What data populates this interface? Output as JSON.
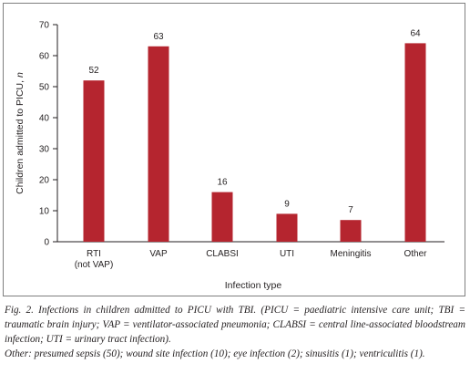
{
  "chart_data": {
    "type": "bar",
    "categories": [
      "RTI|(not VAP)",
      "VAP",
      "CLABSI",
      "UTI",
      "Meningitis",
      "Other"
    ],
    "values": [
      52,
      63,
      16,
      9,
      7,
      64
    ],
    "data_labels": [
      "52",
      "63",
      "16",
      "9",
      "7",
      "64"
    ],
    "xlabel": "Infection type",
    "ylabel": "Children admitted to PICU, ",
    "ylabel_italic": "n",
    "ylim": [
      0,
      70
    ],
    "yticks": [
      0,
      10,
      20,
      30,
      40,
      50,
      60,
      70
    ],
    "bar_color": "#b5252f",
    "grid": false,
    "legend": "none"
  },
  "caption": {
    "main": "Fig. 2. Infections in children admitted to PICU with TBI. (PICU = paediatric intensive care unit; TBI = traumatic brain injury; VAP = ventilator-associated pneumonia; CLABSI = central line-associated bloodstream infection; UTI = urinary tract infection).",
    "note": "Other: presumed sepsis (50); wound site infection (10); eye infection (2); sinusitis (1); ventriculitis (1)."
  }
}
